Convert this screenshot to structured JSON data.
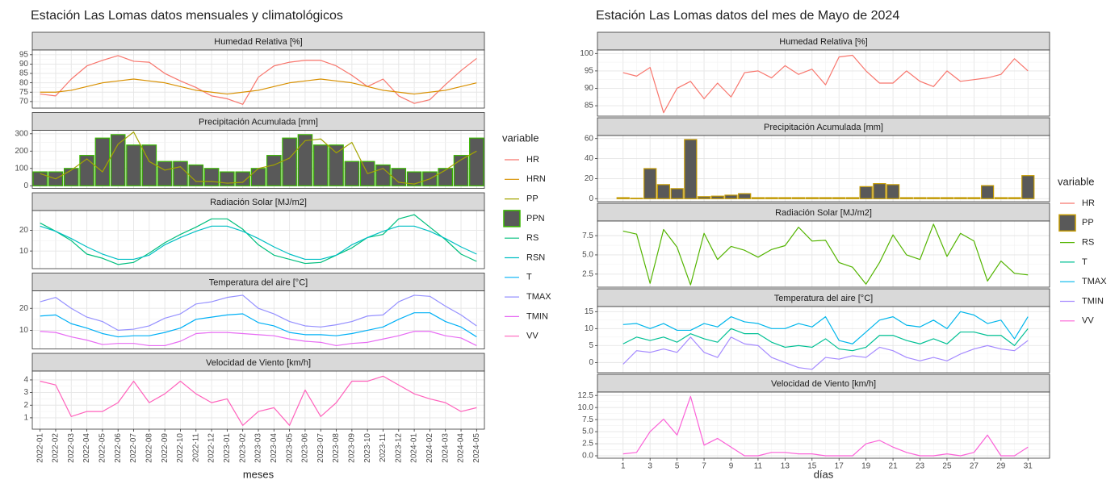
{
  "chart_data": [
    {
      "type": "facets",
      "title": "Estación Las Lomas datos mensuales y climatológicos",
      "xlabel": "meses",
      "legend_title": "variable",
      "grid": true,
      "categories": [
        "2022-01",
        "2022-02",
        "2022-03",
        "2022-04",
        "2022-05",
        "2022-06",
        "2022-07",
        "2022-08",
        "2022-09",
        "2022-10",
        "2022-11",
        "2022-12",
        "2023-01",
        "2023-02",
        "2023-03",
        "2023-04",
        "2023-05",
        "2023-06",
        "2023-07",
        "2023-08",
        "2023-09",
        "2023-10",
        "2023-11",
        "2023-12",
        "2024-01",
        "2024-02",
        "2024-03",
        "2024-04",
        "2024-05"
      ],
      "panels": [
        {
          "title": "Humedad Relativa [%]",
          "ylim": [
            66.5,
            97.5
          ],
          "yticks": [
            70,
            75,
            80,
            85,
            90,
            95
          ],
          "series": [
            {
              "name": "HR",
              "color": "#F8766D",
              "kind": "line",
              "values": [
                74,
                73,
                82,
                89,
                92,
                94.5,
                91.5,
                91,
                85,
                81,
                77.5,
                73,
                71.5,
                68.5,
                83,
                89,
                91,
                92,
                92,
                89,
                84,
                78,
                82,
                73,
                69,
                71,
                79,
                86.5,
                93
              ]
            },
            {
              "name": "HRN",
              "color": "#D89000",
              "kind": "line",
              "values": [
                75,
                75,
                76,
                78,
                80,
                81,
                82,
                81,
                80,
                78,
                76,
                75,
                74,
                75,
                76,
                78,
                80,
                81,
                82,
                81,
                80,
                78,
                76,
                75,
                74,
                75,
                76,
                78,
                80
              ]
            }
          ]
        },
        {
          "title": "Precipitación Acumulada [mm]",
          "ylim": [
            -15,
            320
          ],
          "yticks": [
            0,
            100,
            200,
            300
          ],
          "series": [
            {
              "name": "PP",
              "color": "#A3A500",
              "kind": "line",
              "values": [
                70,
                40,
                90,
                155,
                80,
                240,
                310,
                140,
                90,
                110,
                25,
                25,
                15,
                20,
                100,
                120,
                160,
                260,
                270,
                190,
                250,
                70,
                100,
                20,
                10,
                40,
                90,
                150,
                200
              ]
            },
            {
              "name": "PPN",
              "color": "#39B600",
              "fill": "#595959",
              "kind": "bar",
              "values": [
                80,
                80,
                100,
                175,
                275,
                295,
                235,
                235,
                140,
                140,
                120,
                100,
                80,
                80,
                100,
                175,
                275,
                295,
                235,
                235,
                140,
                140,
                120,
                100,
                80,
                80,
                100,
                175,
                275
              ]
            }
          ]
        },
        {
          "title": "Radiación Solar [MJ/m2]",
          "ylim": [
            1.5,
            29.5
          ],
          "yticks": [
            10,
            20
          ],
          "series": [
            {
              "name": "RS",
              "color": "#00BF7D",
              "kind": "line",
              "values": [
                23.5,
                19.5,
                15,
                8.5,
                6.5,
                3.5,
                4.5,
                9,
                14,
                18,
                21.5,
                25.5,
                25.5,
                20.5,
                13,
                8,
                6,
                4,
                4.5,
                8,
                11.5,
                16.5,
                18,
                25.5,
                27.5,
                21.5,
                15.5,
                8.5,
                5
              ]
            },
            {
              "name": "RSN",
              "color": "#00BFC4",
              "kind": "line",
              "values": [
                22,
                19.5,
                16,
                12,
                8.5,
                6,
                6,
                8,
                13,
                16.5,
                19.5,
                22,
                22,
                19.5,
                16,
                12,
                8.5,
                6,
                6,
                8,
                13,
                16.5,
                19.5,
                22,
                22,
                19.5,
                16,
                12,
                8.5
              ]
            }
          ]
        },
        {
          "title": "Temperatura del aire [°C]",
          "ylim": [
            1.5,
            28
          ],
          "yticks": [
            10,
            20
          ],
          "series": [
            {
              "name": "T",
              "color": "#00B0F6",
              "kind": "line",
              "values": [
                16.5,
                17,
                13,
                11,
                8.5,
                7,
                7.5,
                7.5,
                9,
                11,
                15,
                16,
                17,
                17.5,
                13.5,
                12,
                9,
                8,
                8,
                7.5,
                8.5,
                10,
                11.5,
                15,
                18,
                18,
                14,
                11.5,
                7
              ]
            },
            {
              "name": "TMAX",
              "color": "#9590FF",
              "kind": "line",
              "values": [
                23,
                25,
                20,
                16,
                14,
                10,
                10.5,
                12,
                15.5,
                17.5,
                22,
                23,
                25,
                26,
                20,
                17.5,
                14,
                12,
                11.5,
                12.5,
                14,
                16.5,
                17,
                23,
                26,
                25.5,
                21,
                17,
                12
              ]
            },
            {
              "name": "TMIN",
              "color": "#E76BF3",
              "kind": "line",
              "values": [
                9.5,
                9,
                7,
                5.5,
                3.5,
                4,
                4,
                3,
                3,
                5,
                8.5,
                9,
                9,
                8.5,
                8,
                7.5,
                6,
                5,
                4.5,
                3,
                4,
                4.5,
                6,
                7.5,
                9.5,
                9.5,
                7.5,
                6.5,
                3
              ]
            }
          ]
        },
        {
          "title": "Velocidad de Viento [km/h]",
          "ylim": [
            0.1,
            4.7
          ],
          "yticks": [
            1,
            2,
            3,
            4
          ],
          "series": [
            {
              "name": "VV",
              "color": "#FF62BC",
              "kind": "line",
              "values": [
                3.9,
                3.6,
                1.1,
                1.5,
                1.5,
                2.2,
                3.9,
                2.2,
                2.9,
                3.9,
                2.9,
                2.2,
                2.5,
                0.4,
                1.5,
                1.8,
                0.4,
                3.2,
                1.1,
                2.2,
                3.9,
                3.9,
                4.3,
                3.6,
                2.9,
                2.5,
                2.2,
                1.5,
                1.8
              ]
            }
          ]
        }
      ]
    },
    {
      "type": "facets",
      "title": "Estación Las Lomas datos del mes de Mayo de 2024",
      "xlabel": "días",
      "legend_title": "variable",
      "grid": true,
      "x": [
        1,
        2,
        3,
        4,
        5,
        6,
        7,
        8,
        9,
        10,
        11,
        12,
        13,
        14,
        15,
        16,
        17,
        18,
        19,
        20,
        21,
        22,
        23,
        24,
        25,
        26,
        27,
        28,
        29,
        30,
        31
      ],
      "xlim": [
        -0.9,
        32.6
      ],
      "xticks": [
        1,
        3,
        5,
        7,
        9,
        11,
        13,
        15,
        17,
        19,
        21,
        23,
        25,
        27,
        29,
        31
      ],
      "panels": [
        {
          "title": "Humedad Relativa [%]",
          "ylim": [
            82,
            101
          ],
          "yticks": [
            85,
            90,
            95,
            100
          ],
          "series": [
            {
              "name": "HR",
              "color": "#F8766D",
              "kind": "line",
              "values": [
                94.5,
                93.5,
                96,
                83,
                90,
                92,
                87,
                91.5,
                87.5,
                94.5,
                95,
                93,
                96.5,
                94,
                95.5,
                91,
                99,
                99.5,
                95,
                91.5,
                91.5,
                95,
                92,
                90.5,
                95,
                92,
                92.5,
                93,
                94,
                98.5,
                95
              ]
            }
          ]
        },
        {
          "title": "Precipitación Acumulada [mm]",
          "ylim": [
            -3,
            63
          ],
          "yticks": [
            0,
            20,
            40,
            60
          ],
          "series": [
            {
              "name": "PP",
              "color": "#C49A00",
              "fill": "#595959",
              "kind": "bar",
              "values": [
                1,
                0.5,
                30,
                14,
                10,
                59,
                2,
                2.5,
                3.5,
                5,
                1,
                1,
                1,
                1,
                1,
                1,
                1,
                1,
                12,
                15,
                14,
                1,
                1,
                1,
                1,
                1,
                1,
                13,
                1,
                1,
                23
              ]
            }
          ]
        },
        {
          "title": "Radiación Solar [MJ/m2]",
          "ylim": [
            0.8,
            9.4
          ],
          "yticks": [
            {
              "value": 2.5,
              "label": "2.5"
            },
            {
              "value": 5,
              "label": "5.0"
            },
            {
              "value": 7.5,
              "label": "7.5"
            }
          ],
          "series": [
            {
              "name": "RS",
              "color": "#53B400",
              "kind": "line",
              "values": [
                8.1,
                7.7,
                1.3,
                8.3,
                6,
                1.1,
                7.8,
                4.4,
                6.1,
                5.6,
                4.7,
                5.7,
                6.2,
                8.6,
                6.8,
                6.9,
                4,
                3.4,
                1.2,
                4,
                7.6,
                5,
                4.4,
                9,
                4.8,
                7.8,
                6.8,
                1.6,
                4.2,
                2.6,
                2.4
              ]
            }
          ]
        },
        {
          "title": "Temperatura del aire [°C]",
          "ylim": [
            -3,
            16.5
          ],
          "yticks": [
            0,
            5,
            10,
            15
          ],
          "series": [
            {
              "name": "T",
              "color": "#00C094",
              "kind": "line",
              "values": [
                5.5,
                7.5,
                6.5,
                7.5,
                6,
                8.5,
                7,
                6,
                10,
                8.5,
                8.5,
                6,
                4.5,
                5,
                4.5,
                7,
                4,
                3.5,
                4.5,
                8,
                8,
                6.5,
                5.5,
                7,
                5.5,
                9,
                9,
                8,
                8,
                5,
                10
              ]
            },
            {
              "name": "TMAX",
              "color": "#00B6EB",
              "kind": "line",
              "values": [
                11.2,
                11.5,
                10,
                11.5,
                9.5,
                9.5,
                11.5,
                10.5,
                13.5,
                12,
                11.5,
                10,
                10,
                11.5,
                10.5,
                13.5,
                6.5,
                5.5,
                9,
                12.5,
                13.5,
                11,
                10.5,
                12.5,
                10,
                15,
                14,
                11.5,
                12.5,
                7,
                13.5
              ]
            },
            {
              "name": "TMIN",
              "color": "#A58AFF",
              "kind": "line",
              "values": [
                -0.5,
                3.5,
                3,
                4,
                3,
                7.5,
                3,
                1.5,
                7.5,
                5.5,
                5,
                1.5,
                0,
                -1.5,
                -2,
                1.5,
                1,
                2,
                1.5,
                4.5,
                3.5,
                1.5,
                0.5,
                1.5,
                0.5,
                2.5,
                4,
                5,
                4,
                3.5,
                6.5
              ]
            }
          ]
        },
        {
          "title": "Velocidad de Viento [km/h]",
          "ylim": [
            -0.5,
            13.2
          ],
          "yticks": [
            {
              "value": 0,
              "label": "0.0"
            },
            {
              "value": 2.5,
              "label": "2.5"
            },
            {
              "value": 5,
              "label": "5.0"
            },
            {
              "value": 7.5,
              "label": "7.5"
            },
            {
              "value": 10,
              "label": "10.0"
            },
            {
              "value": 12.5,
              "label": "12.5"
            }
          ],
          "series": [
            {
              "name": "VV",
              "color": "#FB61D7",
              "kind": "line",
              "values": [
                0.4,
                0.7,
                5,
                7.6,
                4.3,
                12.3,
                2.2,
                3.6,
                1.8,
                0,
                0,
                0.7,
                0.7,
                0.4,
                0.4,
                0,
                0,
                0,
                2.5,
                3.2,
                1.8,
                0.7,
                0,
                0,
                0.4,
                0,
                0.7,
                4.3,
                0,
                0,
                1.8
              ]
            }
          ]
        }
      ]
    }
  ]
}
